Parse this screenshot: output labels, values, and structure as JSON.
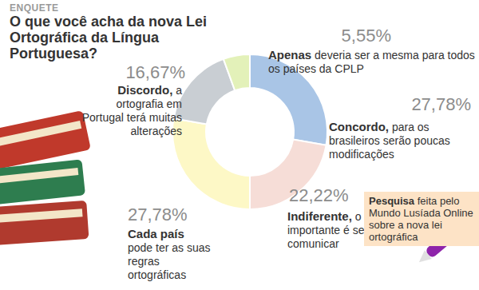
{
  "chart_data": {
    "type": "pie",
    "donut": true,
    "subtitle": "ENQUETE",
    "title": "O que você acha da nova Lei Ortográfica da Língua Portuguesa?",
    "categories": [
      "Concordo,",
      "Indiferente,",
      "Cada país",
      "Discordo,",
      "Apenas"
    ],
    "descriptions": [
      "para os brasileiros serão poucas modificações",
      "o importante é se comunicar",
      "pode ter as suas regras ortográficas",
      "a ortografia em Portugal terá muitas alterações",
      "deveria ser a mesma para todos os países da CPLP"
    ],
    "values": [
      27.78,
      22.22,
      27.78,
      16.67,
      5.55
    ],
    "value_labels": [
      "27,78%",
      "22,22%",
      "27,78%",
      "16,67%",
      "5,55%"
    ],
    "data_labels": true,
    "colors": [
      "#a9c5e6",
      "#f6ddd7",
      "#fdf8c6",
      "#c9ced3",
      "#e3f1b9"
    ],
    "annotations": [
      "Pesquisa feita pelo Mundo Lusíada Online sobre a nova lei ortográfica"
    ]
  }
}
